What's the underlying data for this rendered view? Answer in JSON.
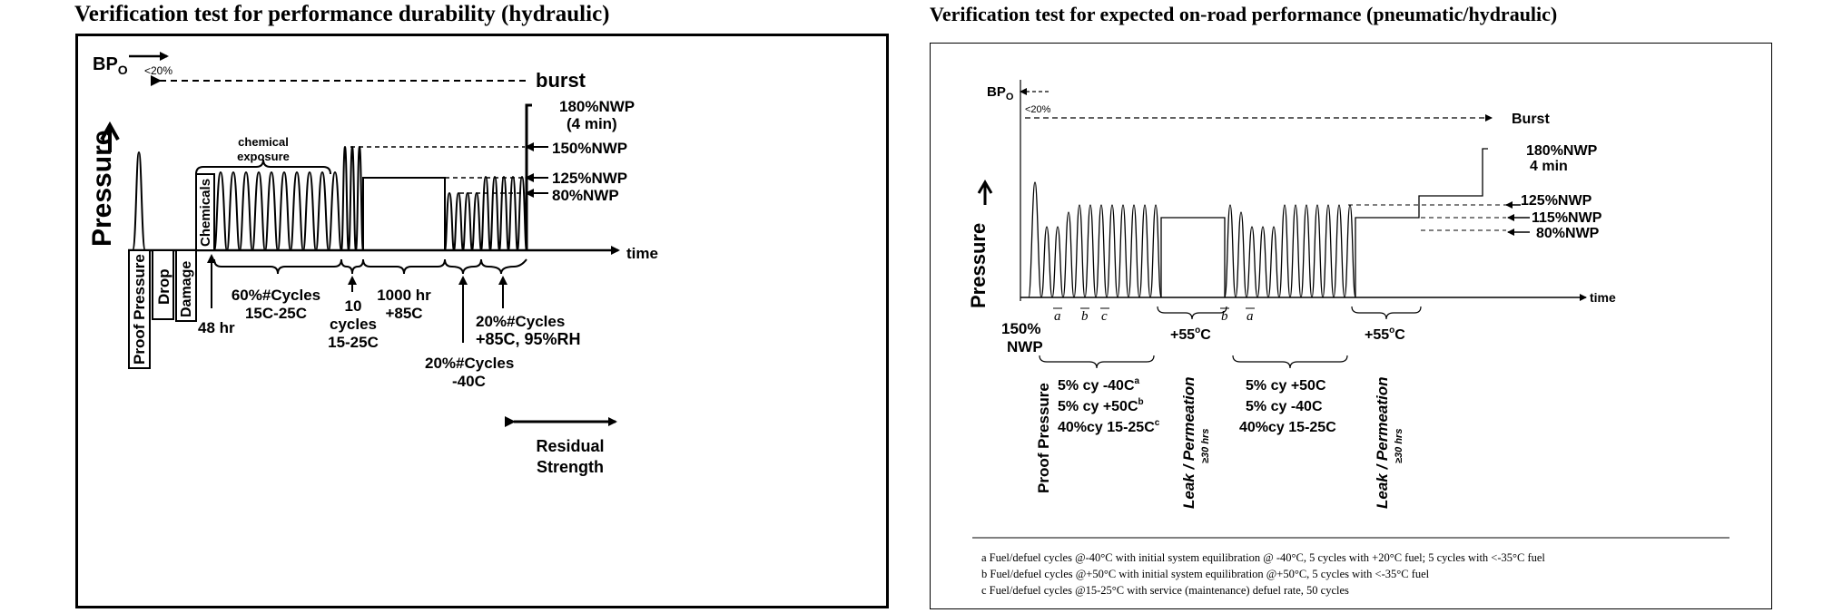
{
  "left": {
    "title": "Verification test for performance durability (hydraulic)",
    "bpo_main": "BP",
    "bpo_sub": "O",
    "lt20": "<20%",
    "burst": "burst",
    "y_axis": "Pressure",
    "time": "time",
    "chemical_exposure_1": "chemical",
    "chemical_exposure_2": "exposure",
    "chemicals": "Chemicals",
    "proof_pressure": "Proof Pressure",
    "drop": "Drop",
    "damage": "Damage",
    "nwp180_1": "180%NWP",
    "nwp180_2": "(4 min)",
    "nwp150": "150%NWP",
    "nwp125": "125%NWP",
    "nwp80": "80%NWP",
    "h48": "48 hr",
    "cyc60_1": "60%#Cycles",
    "cyc60_2": "15C-25C",
    "cyc10_1": "10",
    "cyc10_2": "cycles",
    "cyc10_3": "15-25C",
    "h1000_1": "1000 hr",
    "h1000_2": "+85C",
    "cyc20a_1": "20%#Cycles",
    "cyc20a_2": "-40C",
    "cyc20b_1": "20%#Cycles",
    "cyc20b_2": "+85C, 95%RH",
    "residual_1": "Residual",
    "residual_2": "Strength"
  },
  "right": {
    "title": "Verification test for expected on-road performance (pneumatic/hydraulic)",
    "bpo_main": "BP",
    "bpo_sub": "O",
    "lt20": "<20%",
    "burst": "Burst",
    "y_axis": "Pressure",
    "time": "time",
    "nwp180_1": "180%NWP",
    "nwp180_2": "4 min",
    "nwp125": "125%NWP",
    "nwp115": "115%NWP",
    "nwp80": "80%NWP",
    "nwp150_1": "150%",
    "nwp150_2": "NWP",
    "lbl_a1": "a",
    "lbl_b1": "b",
    "lbl_c1": "c",
    "lbl_b2": "b",
    "lbl_a2": "a",
    "t55_1": "+55",
    "t55_2": "+55",
    "deg": "o",
    "degC": "C",
    "proof_pressure": "Proof Pressure",
    "leak_1": "Leak / Permeation",
    "leak_2": "Leak / Permeation",
    "hrs_1": "≥30 hrs",
    "hrs_2": "≥30 hrs",
    "g1_l1": "5% cy  -40C",
    "g1_l1_sup": "a",
    "g1_l2": "5% cy  +50C",
    "g1_l2_sup": "b",
    "g1_l3": "40%cy 15-25C",
    "g1_l3_sup": "c",
    "g2_l1": "5% cy +50C",
    "g2_l2": "5% cy  -40C",
    "g2_l3": "40%cy 15-25C",
    "fn_a": "a  Fuel/defuel cycles @-40°C with initial system equilibration @ -40°C, 5 cycles with +20°C fuel; 5 cycles with <-35°C fuel",
    "fn_b": "b  Fuel/defuel cycles @+50°C with initial system equilibration @+50°C, 5 cycles with <-35°C fuel",
    "fn_c": "c  Fuel/defuel cycles @15-25°C with service (maintenance) defuel rate, 50 cycles"
  }
}
